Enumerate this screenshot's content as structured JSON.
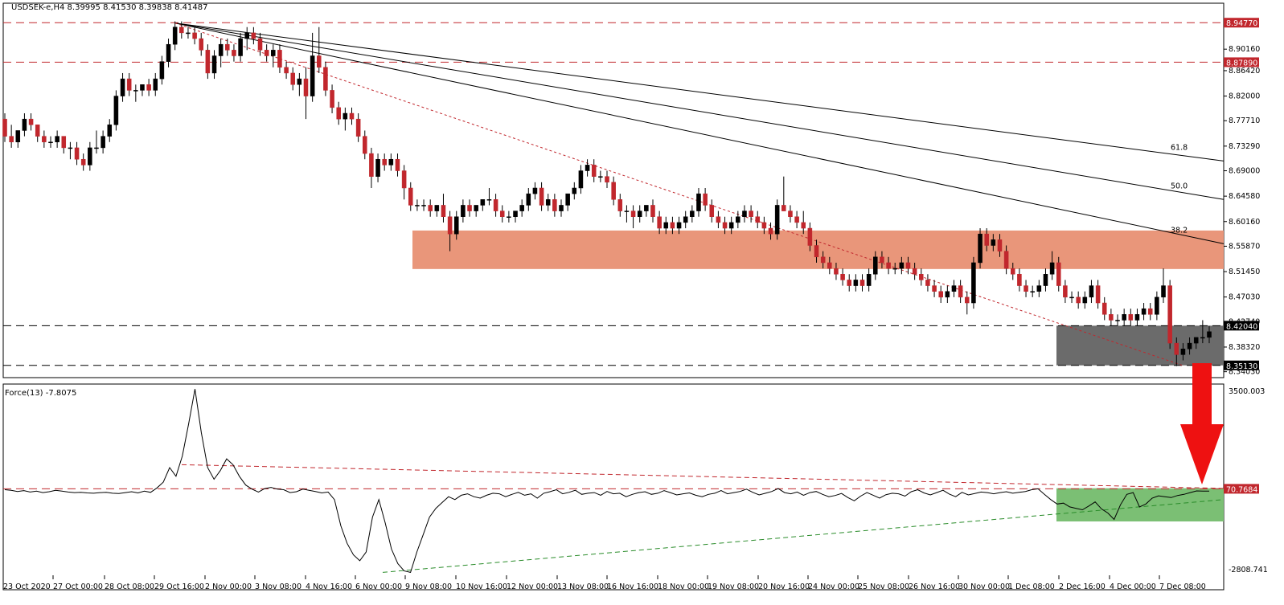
{
  "chart_data": {
    "type": "candlestick",
    "symbol": "USDSEK-e,H4",
    "ohlc_header": [
      "8.39995",
      "8.41530",
      "8.39838",
      "8.41487"
    ],
    "header_text": "USDSEK-e,H4  8.39995 8.41530 8.39838 8.41487",
    "y_ticks": [
      "8.90160",
      "8.86420",
      "8.82000",
      "8.77710",
      "8.73290",
      "8.69000",
      "8.64580",
      "8.60160",
      "8.55870",
      "8.51450",
      "8.47030",
      "8.42740",
      "8.38320",
      "8.34030"
    ],
    "y_range": [
      8.33,
      8.962
    ],
    "x_ticks": [
      "23 Oct 2020",
      "27 Oct 00:00",
      "28 Oct 08:00",
      "29 Oct 16:00",
      "2 Nov 00:00",
      "3 Nov 08:00",
      "4 Nov 16:00",
      "6 Nov 00:00",
      "9 Nov 08:00",
      "10 Nov 16:00",
      "12 Nov 00:00",
      "13 Nov 08:00",
      "16 Nov 16:00",
      "18 Nov 00:00",
      "19 Nov 08:00",
      "20 Nov 16:00",
      "24 Nov 00:00",
      "25 Nov 08:00",
      "26 Nov 16:00",
      "30 Nov 00:00",
      "1 Dec 08:00",
      "2 Dec 16:00",
      "4 Dec 00:00",
      "7 Dec 08:00"
    ],
    "price_levels": [
      {
        "value": 8.9477,
        "label": "8.94770",
        "style": "red-dashed",
        "color": "#c1272d"
      },
      {
        "value": 8.8789,
        "label": "8.87890",
        "style": "red-dashed",
        "color": "#c1272d"
      },
      {
        "value": 8.4204,
        "label": "8.42040",
        "style": "black-dashed",
        "color": "#000000"
      },
      {
        "value": 8.3513,
        "label": "8.35130",
        "style": "black-dashed",
        "color": "#000000"
      }
    ],
    "zones": [
      {
        "name": "resistance",
        "from": 8.519,
        "to": 8.586,
        "color": "#e9967a"
      },
      {
        "name": "support",
        "from": 8.3513,
        "to": 8.4204,
        "color": "#6b6b6b"
      }
    ],
    "fib_fan": [
      {
        "label": "61.8",
        "from": 8.947,
        "to": 8.707
      },
      {
        "label": "50.0",
        "from": 8.947,
        "to": 8.64
      },
      {
        "label": "38.2",
        "from": 8.947,
        "to": 8.563
      }
    ],
    "red_trendline": {
      "from": 8.947,
      "to": 8.351
    },
    "candles": [
      [
        8.78,
        8.79,
        8.74,
        8.75
      ],
      [
        8.75,
        8.77,
        8.73,
        8.74
      ],
      [
        8.74,
        8.76,
        8.73,
        8.76
      ],
      [
        8.76,
        8.79,
        8.75,
        8.78
      ],
      [
        8.78,
        8.79,
        8.76,
        8.77
      ],
      [
        8.77,
        8.77,
        8.74,
        8.75
      ],
      [
        8.75,
        8.76,
        8.73,
        8.74
      ],
      [
        8.74,
        8.75,
        8.73,
        8.74
      ],
      [
        8.74,
        8.76,
        8.73,
        8.75
      ],
      [
        8.75,
        8.75,
        8.72,
        8.73
      ],
      [
        8.73,
        8.74,
        8.71,
        8.73
      ],
      [
        8.73,
        8.74,
        8.7,
        8.71
      ],
      [
        8.71,
        8.72,
        8.69,
        8.7
      ],
      [
        8.7,
        8.74,
        8.69,
        8.73
      ],
      [
        8.73,
        8.76,
        8.72,
        8.73
      ],
      [
        8.73,
        8.76,
        8.72,
        8.75
      ],
      [
        8.75,
        8.78,
        8.74,
        8.77
      ],
      [
        8.77,
        8.83,
        8.76,
        8.82
      ],
      [
        8.82,
        8.86,
        8.81,
        8.85
      ],
      [
        8.85,
        8.86,
        8.82,
        8.83
      ],
      [
        8.83,
        8.84,
        8.81,
        8.83
      ],
      [
        8.83,
        8.84,
        8.82,
        8.84
      ],
      [
        8.84,
        8.85,
        8.82,
        8.83
      ],
      [
        8.83,
        8.86,
        8.82,
        8.85
      ],
      [
        8.85,
        8.89,
        8.84,
        8.88
      ],
      [
        8.88,
        8.92,
        8.87,
        8.91
      ],
      [
        8.91,
        8.95,
        8.9,
        8.94
      ],
      [
        8.94,
        8.95,
        8.92,
        8.93
      ],
      [
        8.93,
        8.94,
        8.92,
        8.93
      ],
      [
        8.93,
        8.94,
        8.91,
        8.92
      ],
      [
        8.92,
        8.93,
        8.89,
        8.9
      ],
      [
        8.9,
        8.91,
        8.85,
        8.86
      ],
      [
        8.86,
        8.9,
        8.85,
        8.89
      ],
      [
        8.89,
        8.92,
        8.87,
        8.91
      ],
      [
        8.91,
        8.92,
        8.89,
        8.9
      ],
      [
        8.9,
        8.91,
        8.88,
        8.89
      ],
      [
        8.89,
        8.93,
        8.88,
        8.92
      ],
      [
        8.92,
        8.94,
        8.9,
        8.93
      ],
      [
        8.93,
        8.94,
        8.91,
        8.92
      ],
      [
        8.92,
        8.93,
        8.89,
        8.9
      ],
      [
        8.9,
        8.91,
        8.88,
        8.89
      ],
      [
        8.89,
        8.91,
        8.87,
        8.9
      ],
      [
        8.9,
        8.91,
        8.86,
        8.87
      ],
      [
        8.87,
        8.88,
        8.85,
        8.86
      ],
      [
        8.86,
        8.87,
        8.83,
        8.84
      ],
      [
        8.84,
        8.86,
        8.82,
        8.85
      ],
      [
        8.85,
        8.87,
        8.78,
        8.82
      ],
      [
        8.82,
        8.93,
        8.81,
        8.89
      ],
      [
        8.89,
        8.94,
        8.86,
        8.87
      ],
      [
        8.87,
        8.88,
        8.82,
        8.83
      ],
      [
        8.83,
        8.84,
        8.79,
        8.8
      ],
      [
        8.8,
        8.81,
        8.77,
        8.78
      ],
      [
        8.78,
        8.8,
        8.76,
        8.79
      ],
      [
        8.79,
        8.8,
        8.77,
        8.78
      ],
      [
        8.78,
        8.79,
        8.74,
        8.75
      ],
      [
        8.75,
        8.76,
        8.71,
        8.72
      ],
      [
        8.72,
        8.73,
        8.66,
        8.68
      ],
      [
        8.68,
        8.72,
        8.67,
        8.71
      ],
      [
        8.71,
        8.72,
        8.69,
        8.7
      ],
      [
        8.7,
        8.72,
        8.69,
        8.71
      ],
      [
        8.71,
        8.72,
        8.68,
        8.69
      ],
      [
        8.69,
        8.7,
        8.64,
        8.66
      ],
      [
        8.66,
        8.67,
        8.62,
        8.63
      ],
      [
        8.63,
        8.64,
        8.62,
        8.63
      ],
      [
        8.63,
        8.64,
        8.62,
        8.63
      ],
      [
        8.63,
        8.64,
        8.61,
        8.62
      ],
      [
        8.62,
        8.63,
        8.61,
        8.63
      ],
      [
        8.63,
        8.65,
        8.6,
        8.61
      ],
      [
        8.61,
        8.62,
        8.55,
        8.58
      ],
      [
        8.58,
        8.62,
        8.57,
        8.61
      ],
      [
        8.61,
        8.64,
        8.6,
        8.63
      ],
      [
        8.63,
        8.64,
        8.61,
        8.62
      ],
      [
        8.62,
        8.63,
        8.61,
        8.63
      ],
      [
        8.63,
        8.64,
        8.62,
        8.64
      ],
      [
        8.64,
        8.66,
        8.63,
        8.64
      ],
      [
        8.64,
        8.65,
        8.61,
        8.62
      ],
      [
        8.62,
        8.63,
        8.6,
        8.61
      ],
      [
        8.61,
        8.62,
        8.6,
        8.61
      ],
      [
        8.61,
        8.62,
        8.6,
        8.62
      ],
      [
        8.62,
        8.64,
        8.61,
        8.63
      ],
      [
        8.63,
        8.66,
        8.62,
        8.65
      ],
      [
        8.65,
        8.67,
        8.64,
        8.66
      ],
      [
        8.66,
        8.67,
        8.62,
        8.63
      ],
      [
        8.63,
        8.65,
        8.62,
        8.64
      ],
      [
        8.64,
        8.65,
        8.61,
        8.62
      ],
      [
        8.62,
        8.64,
        8.61,
        8.63
      ],
      [
        8.63,
        8.65,
        8.62,
        8.65
      ],
      [
        8.65,
        8.67,
        8.64,
        8.66
      ],
      [
        8.66,
        8.7,
        8.65,
        8.69
      ],
      [
        8.69,
        8.71,
        8.68,
        8.7
      ],
      [
        8.7,
        8.71,
        8.67,
        8.68
      ],
      [
        8.68,
        8.69,
        8.67,
        8.68
      ],
      [
        8.68,
        8.69,
        8.66,
        8.67
      ],
      [
        8.67,
        8.68,
        8.63,
        8.64
      ],
      [
        8.64,
        8.65,
        8.61,
        8.62
      ],
      [
        8.62,
        8.63,
        8.6,
        8.62
      ],
      [
        8.62,
        8.63,
        8.59,
        8.61
      ],
      [
        8.61,
        8.63,
        8.6,
        8.62
      ],
      [
        8.62,
        8.63,
        8.61,
        8.63
      ],
      [
        8.63,
        8.64,
        8.6,
        8.61
      ],
      [
        8.61,
        8.62,
        8.58,
        8.59
      ],
      [
        8.59,
        8.61,
        8.58,
        8.6
      ],
      [
        8.6,
        8.61,
        8.58,
        8.59
      ],
      [
        8.59,
        8.61,
        8.58,
        8.6
      ],
      [
        8.6,
        8.62,
        8.59,
        8.61
      ],
      [
        8.61,
        8.63,
        8.6,
        8.62
      ],
      [
        8.62,
        8.66,
        8.61,
        8.65
      ],
      [
        8.65,
        8.66,
        8.62,
        8.63
      ],
      [
        8.63,
        8.64,
        8.6,
        8.61
      ],
      [
        8.61,
        8.62,
        8.59,
        8.6
      ],
      [
        8.6,
        8.61,
        8.58,
        8.59
      ],
      [
        8.59,
        8.61,
        8.58,
        8.6
      ],
      [
        8.6,
        8.62,
        8.59,
        8.61
      ],
      [
        8.61,
        8.63,
        8.6,
        8.62
      ],
      [
        8.62,
        8.63,
        8.6,
        8.61
      ],
      [
        8.61,
        8.62,
        8.59,
        8.6
      ],
      [
        8.6,
        8.61,
        8.58,
        8.59
      ],
      [
        8.59,
        8.6,
        8.57,
        8.58
      ],
      [
        8.58,
        8.64,
        8.57,
        8.63
      ],
      [
        8.63,
        8.68,
        8.62,
        8.62
      ],
      [
        8.62,
        8.63,
        8.6,
        8.61
      ],
      [
        8.61,
        8.62,
        8.59,
        8.6
      ],
      [
        8.6,
        8.62,
        8.58,
        8.59
      ],
      [
        8.59,
        8.6,
        8.55,
        8.56
      ],
      [
        8.56,
        8.57,
        8.53,
        8.54
      ],
      [
        8.54,
        8.55,
        8.52,
        8.53
      ],
      [
        8.53,
        8.54,
        8.51,
        8.52
      ],
      [
        8.52,
        8.53,
        8.5,
        8.51
      ],
      [
        8.51,
        8.52,
        8.49,
        8.5
      ],
      [
        8.5,
        8.51,
        8.48,
        8.49
      ],
      [
        8.49,
        8.51,
        8.48,
        8.5
      ],
      [
        8.5,
        8.51,
        8.48,
        8.49
      ],
      [
        8.49,
        8.52,
        8.48,
        8.51
      ],
      [
        8.51,
        8.55,
        8.5,
        8.54
      ],
      [
        8.54,
        8.55,
        8.52,
        8.53
      ],
      [
        8.53,
        8.54,
        8.51,
        8.52
      ],
      [
        8.52,
        8.53,
        8.51,
        8.52
      ],
      [
        8.52,
        8.54,
        8.51,
        8.53
      ],
      [
        8.53,
        8.54,
        8.51,
        8.52
      ],
      [
        8.52,
        8.53,
        8.5,
        8.51
      ],
      [
        8.51,
        8.52,
        8.49,
        8.5
      ],
      [
        8.5,
        8.51,
        8.48,
        8.49
      ],
      [
        8.49,
        8.5,
        8.47,
        8.48
      ],
      [
        8.48,
        8.49,
        8.46,
        8.47
      ],
      [
        8.47,
        8.49,
        8.46,
        8.48
      ],
      [
        8.48,
        8.5,
        8.47,
        8.49
      ],
      [
        8.49,
        8.5,
        8.46,
        8.47
      ],
      [
        8.47,
        8.48,
        8.44,
        8.46
      ],
      [
        8.46,
        8.54,
        8.45,
        8.53
      ],
      [
        8.53,
        8.59,
        8.52,
        8.58
      ],
      [
        8.58,
        8.59,
        8.55,
        8.56
      ],
      [
        8.56,
        8.58,
        8.55,
        8.57
      ],
      [
        8.57,
        8.58,
        8.54,
        8.55
      ],
      [
        8.55,
        8.56,
        8.51,
        8.52
      ],
      [
        8.52,
        8.53,
        8.5,
        8.51
      ],
      [
        8.51,
        8.52,
        8.48,
        8.49
      ],
      [
        8.49,
        8.5,
        8.47,
        8.48
      ],
      [
        8.48,
        8.49,
        8.47,
        8.48
      ],
      [
        8.48,
        8.5,
        8.47,
        8.49
      ],
      [
        8.49,
        8.52,
        8.48,
        8.51
      ],
      [
        8.51,
        8.55,
        8.5,
        8.53
      ],
      [
        8.53,
        8.54,
        8.48,
        8.49
      ],
      [
        8.49,
        8.5,
        8.46,
        8.47
      ],
      [
        8.47,
        8.48,
        8.46,
        8.47
      ],
      [
        8.47,
        8.48,
        8.45,
        8.46
      ],
      [
        8.46,
        8.48,
        8.45,
        8.47
      ],
      [
        8.47,
        8.5,
        8.46,
        8.49
      ],
      [
        8.49,
        8.5,
        8.45,
        8.46
      ],
      [
        8.46,
        8.47,
        8.43,
        8.44
      ],
      [
        8.44,
        8.45,
        8.42,
        8.43
      ],
      [
        8.43,
        8.44,
        8.42,
        8.43
      ],
      [
        8.43,
        8.45,
        8.42,
        8.44
      ],
      [
        8.44,
        8.45,
        8.42,
        8.43
      ],
      [
        8.43,
        8.45,
        8.42,
        8.44
      ],
      [
        8.44,
        8.46,
        8.43,
        8.45
      ],
      [
        8.45,
        8.46,
        8.43,
        8.44
      ],
      [
        8.44,
        8.48,
        8.43,
        8.47
      ],
      [
        8.47,
        8.52,
        8.46,
        8.49
      ],
      [
        8.49,
        8.5,
        8.38,
        8.39
      ],
      [
        8.39,
        8.4,
        8.35,
        8.37
      ],
      [
        8.37,
        8.39,
        8.36,
        8.38
      ],
      [
        8.38,
        8.4,
        8.37,
        8.39
      ],
      [
        8.39,
        8.4,
        8.38,
        8.4
      ],
      [
        8.4,
        8.43,
        8.39,
        8.4
      ],
      [
        8.4,
        8.42,
        8.39,
        8.41
      ]
    ],
    "indicator": {
      "name": "Force(13) -7.8075",
      "y_top_label": "3500.003",
      "y_bottom_label": "-2808.741",
      "y_range": [
        -2900,
        3560
      ],
      "level": {
        "value": 70.7684,
        "label": "70.7684",
        "color": "#c1272d"
      },
      "values": [
        40,
        20,
        -20,
        10,
        -40,
        -10,
        -60,
        -30,
        20,
        -10,
        -40,
        -60,
        -50,
        -70,
        -80,
        -60,
        -50,
        -80,
        -90,
        -60,
        -30,
        -70,
        -10,
        -50,
        100,
        300,
        800,
        500,
        1200,
        2300,
        3500,
        2000,
        800,
        400,
        700,
        1100,
        900,
        500,
        200,
        60,
        -40,
        80,
        120,
        60,
        40,
        -60,
        -30,
        60,
        20,
        -20,
        -70,
        -40,
        -300,
        -1200,
        -1800,
        -2200,
        -2400,
        -2100,
        -900,
        -300,
        -1100,
        -2000,
        -2500,
        -2750,
        -2800,
        -2100,
        -1500,
        -900,
        -600,
        -400,
        -200,
        -300,
        -150,
        -100,
        -200,
        -250,
        -150,
        -80,
        -100,
        -200,
        -120,
        -50,
        -150,
        -100,
        -250,
        -80,
        -30,
        40,
        -100,
        -50,
        20,
        -120,
        -80,
        -60,
        -150,
        -20,
        -100,
        -80,
        -200,
        -120,
        -60,
        -30,
        -120,
        -80,
        10,
        -60,
        -140,
        -100,
        -70,
        -150,
        -200,
        -120,
        -80,
        10,
        -100,
        -60,
        -20,
        60,
        -50,
        -140,
        -80,
        -20,
        80,
        -60,
        -100,
        -40,
        -150,
        -60,
        -20,
        -120,
        -200,
        -160,
        -90,
        -230,
        -340,
        -180,
        -60,
        -150,
        -250,
        -130,
        -80,
        -100,
        -180,
        -30,
        40,
        -70,
        -140,
        -60,
        20,
        -110,
        -200,
        -50,
        -140,
        -90,
        -40,
        -60,
        -100,
        -60,
        -30,
        -80,
        -50,
        -20,
        40,
        70,
        -120,
        -300,
        -450,
        -420,
        -550,
        -600,
        -650,
        -520,
        -380,
        -620,
        -760,
        -980,
        -480,
        -120,
        -60,
        -550,
        -450,
        -250,
        -170,
        -200,
        -230,
        -160,
        -120,
        -60,
        0,
        -10,
        -8
      ]
    },
    "indicator_lines": [
      {
        "name": "descending-resistance",
        "from": 900,
        "to": 85,
        "color": "#c1272d"
      },
      {
        "name": "ascending-support",
        "from": -2800,
        "to": -300,
        "color": "#2a8c2a"
      }
    ],
    "indicator_zone": {
      "from": -1050,
      "to": 90,
      "color": "#7bbf74"
    },
    "arrow": {
      "color": "#ee1111",
      "direction": "down"
    }
  }
}
